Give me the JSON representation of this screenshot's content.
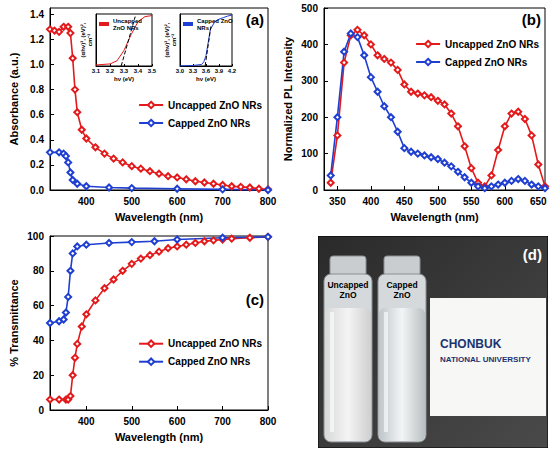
{
  "chart_data": [
    {
      "type": "line",
      "title": "(a)",
      "xlabel": "Wavelength (nm)",
      "ylabel": "Absorbance (a.u.)",
      "xlim": [
        320,
        800
      ],
      "xticks": [
        400,
        500,
        600,
        700,
        800
      ],
      "ylim": [
        0,
        1.45
      ],
      "yticks": [
        {
          "value": 0,
          "label": "0.0"
        },
        0.2,
        0.4,
        0.6,
        0.8,
        {
          "value": 1,
          "label": "1.0"
        },
        1.2,
        1.4
      ],
      "grid": false,
      "legend": "right",
      "series": [
        {
          "name": "Uncapped ZnO NRs",
          "color": "#e31a1c",
          "marker": "diamond",
          "x": [
            320,
            330,
            340,
            350,
            360,
            365,
            370,
            375,
            380,
            390,
            400,
            420,
            440,
            460,
            480,
            500,
            520,
            540,
            560,
            580,
            600,
            620,
            640,
            660,
            680,
            700,
            720,
            740,
            760,
            780,
            800
          ],
          "values": [
            1.28,
            1.27,
            1.26,
            1.3,
            1.3,
            1.25,
            1.05,
            0.8,
            0.62,
            0.48,
            0.41,
            0.34,
            0.29,
            0.25,
            0.22,
            0.19,
            0.17,
            0.15,
            0.13,
            0.11,
            0.1,
            0.085,
            0.07,
            0.06,
            0.05,
            0.04,
            0.03,
            0.025,
            0.02,
            0.01,
            0.005
          ]
        },
        {
          "name": "Capped ZnO NRs",
          "color": "#1f3fd1",
          "marker": "diamond",
          "x": [
            320,
            340,
            350,
            355,
            360,
            365,
            370,
            380,
            400,
            450,
            500,
            600,
            700,
            800
          ],
          "values": [
            0.3,
            0.3,
            0.29,
            0.27,
            0.22,
            0.14,
            0.08,
            0.05,
            0.03,
            0.02,
            0.015,
            0.01,
            0.005,
            0
          ]
        }
      ]
    },
    {
      "type": "line",
      "xlabel": "hν (eV)",
      "ylabel": "(αhν)², (eV)², cm⁻²",
      "xlim": [
        3.1,
        3.5
      ],
      "xticks": [
        3.1,
        3.2,
        3.3,
        3.4,
        3.5
      ],
      "ylim": [
        0,
        1
      ],
      "tick_labels": "x",
      "grid": false,
      "legend": "upper left",
      "series": [
        {
          "name": "Uncapped ZnO NRs",
          "color": "#e31a1c",
          "x": [
            3.1,
            3.2,
            3.25,
            3.3,
            3.35,
            3.4,
            3.45,
            3.5
          ],
          "values": [
            0.02,
            0.04,
            0.1,
            0.3,
            0.6,
            0.85,
            0.95,
            0.97
          ]
        },
        {
          "color": "#000000",
          "line_style": "dashed",
          "x": [
            3.28,
            3.38
          ],
          "values": [
            0,
            0.95
          ]
        }
      ]
    },
    {
      "type": "line",
      "xlabel": "hν (eV)",
      "ylabel": "(αhν)², (eV)², cm⁻²",
      "xlim": [
        3.0,
        4.2
      ],
      "xticks": [
        {
          "value": 3,
          "label": "3.0"
        },
        3.3,
        3.6,
        3.9,
        4.2
      ],
      "ylim": [
        0,
        1
      ],
      "tick_labels": "x",
      "grid": false,
      "legend": "upper left",
      "series": [
        {
          "name": "Capped ZnO NRs",
          "color": "#1f3fd1",
          "x": [
            3.0,
            3.3,
            3.5,
            3.55,
            3.6,
            3.65,
            3.7,
            3.8,
            3.9,
            4.0,
            4.1,
            4.2
          ],
          "values": [
            0,
            0.01,
            0.03,
            0.08,
            0.2,
            0.45,
            0.7,
            0.85,
            0.9,
            0.93,
            0.96,
            0.98
          ]
        },
        {
          "color": "#000000",
          "line_style": "dashed",
          "x": [
            3.58,
            3.72
          ],
          "values": [
            0,
            0.8
          ]
        }
      ]
    },
    {
      "type": "line",
      "title": "(b)",
      "xlabel": "Wavelength (nm)",
      "ylabel": "Normalized PL Intensity",
      "xlim": [
        330,
        660
      ],
      "xticks": [
        350,
        400,
        450,
        500,
        550,
        600,
        650
      ],
      "ylim": [
        0,
        500
      ],
      "yticks": [
        0,
        100,
        200,
        300,
        400,
        500
      ],
      "grid": false,
      "legend": "upper right",
      "series": [
        {
          "name": "Uncapped ZnO NRs",
          "color": "#e31a1c",
          "marker": "diamond",
          "x": [
            340,
            350,
            360,
            370,
            380,
            390,
            400,
            410,
            420,
            430,
            440,
            450,
            460,
            470,
            480,
            490,
            500,
            510,
            520,
            530,
            540,
            550,
            560,
            570,
            580,
            590,
            600,
            610,
            620,
            630,
            640,
            650,
            660
          ],
          "values": [
            20,
            150,
            350,
            425,
            440,
            425,
            400,
            370,
            360,
            350,
            330,
            290,
            270,
            265,
            260,
            255,
            245,
            235,
            210,
            175,
            120,
            60,
            20,
            10,
            40,
            110,
            175,
            210,
            215,
            195,
            150,
            70,
            10
          ]
        },
        {
          "name": "Capped ZnO NRs",
          "color": "#1f3fd1",
          "marker": "diamond",
          "x": [
            340,
            350,
            360,
            370,
            380,
            390,
            400,
            410,
            420,
            430,
            440,
            450,
            460,
            470,
            480,
            490,
            500,
            510,
            520,
            530,
            540,
            550,
            560,
            570,
            580,
            590,
            600,
            610,
            620,
            630,
            640,
            650,
            660
          ],
          "values": [
            40,
            200,
            380,
            430,
            420,
            370,
            310,
            270,
            230,
            200,
            160,
            115,
            105,
            100,
            95,
            90,
            85,
            75,
            65,
            50,
            35,
            20,
            10,
            5,
            10,
            15,
            20,
            25,
            30,
            25,
            15,
            10,
            5
          ]
        }
      ]
    },
    {
      "type": "line",
      "title": "(c)",
      "xlabel": "Wavelength (nm)",
      "ylabel": "% Transmittance",
      "xlim": [
        320,
        800
      ],
      "xticks": [
        400,
        500,
        600,
        700,
        800
      ],
      "ylim": [
        0,
        100
      ],
      "yticks": [
        0,
        20,
        40,
        60,
        80,
        100
      ],
      "grid": false,
      "legend": "lower right",
      "series": [
        {
          "name": "Uncapped ZnO NRs",
          "color": "#e31a1c",
          "marker": "diamond",
          "x": [
            320,
            340,
            355,
            360,
            365,
            370,
            375,
            380,
            390,
            400,
            420,
            440,
            460,
            480,
            500,
            520,
            540,
            560,
            580,
            600,
            620,
            640,
            660,
            680,
            700,
            720,
            760,
            800
          ],
          "values": [
            6,
            6,
            6,
            6,
            8,
            20,
            30,
            38,
            48,
            55,
            63,
            70,
            75,
            80,
            84,
            87,
            89,
            91,
            93,
            94,
            95,
            96,
            97,
            97.5,
            98,
            98.5,
            99,
            99.5
          ]
        },
        {
          "name": "Capped ZnO NRs",
          "color": "#1f3fd1",
          "marker": "diamond",
          "x": [
            320,
            340,
            350,
            355,
            360,
            365,
            370,
            380,
            400,
            450,
            500,
            550,
            600,
            700,
            800
          ],
          "values": [
            50,
            51,
            52,
            56,
            65,
            80,
            90,
            94,
            95,
            96,
            96.5,
            97,
            98,
            99,
            99.5
          ]
        }
      ]
    }
  ],
  "photo": {
    "label": "(d)",
    "vials": [
      "Uncapped ZnO",
      "Capped ZnO"
    ],
    "card": [
      "CHONBUK",
      "NATIONAL UNIVERSITY"
    ]
  }
}
